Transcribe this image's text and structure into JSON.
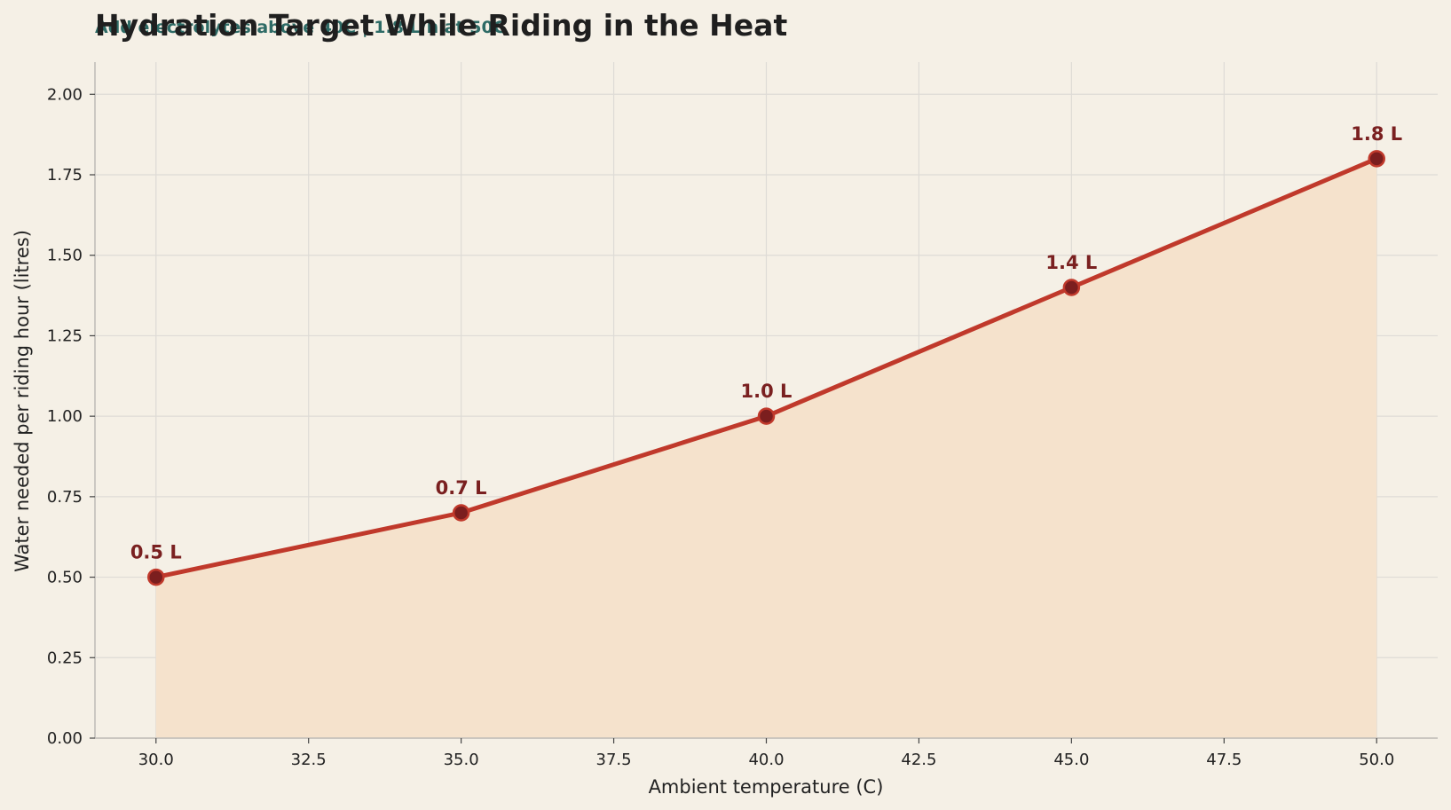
{
  "chart_data": {
    "type": "line",
    "title": "Hydration Target While Riding in the Heat",
    "subtitle": "Add electrolytes above 40C | 1.8 L/h at 50C",
    "xlabel": "Ambient temperature (C)",
    "ylabel": "Water needed per riding hour (litres)",
    "xlim": [
      29,
      51
    ],
    "ylim": [
      0,
      2.1
    ],
    "xticks": [
      30.0,
      32.5,
      35.0,
      37.5,
      40.0,
      42.5,
      45.0,
      47.5,
      50.0
    ],
    "xtick_labels": [
      "30.0",
      "32.5",
      "35.0",
      "37.5",
      "40.0",
      "42.5",
      "45.0",
      "47.5",
      "50.0"
    ],
    "yticks": [
      0,
      0.25,
      0.5,
      0.75,
      1.0,
      1.25,
      1.5,
      1.75,
      2.0
    ],
    "ytick_labels": [
      "0.00",
      "0.25",
      "0.50",
      "0.75",
      "1.00",
      "1.25",
      "1.50",
      "1.75",
      "2.00"
    ],
    "grid": true,
    "fill_under": true,
    "series": [
      {
        "x": [
          30,
          35,
          40,
          45,
          50
        ],
        "y": [
          0.5,
          0.7,
          1.0,
          1.4,
          1.8
        ],
        "labels": [
          "0.5 L",
          "0.7 L",
          "1.0 L",
          "1.4 L",
          "1.8 L"
        ]
      }
    ],
    "colors": {
      "background": "#f5f0e6",
      "line": "#c0392b",
      "marker_fill": "#7b1e1e",
      "fill": "#f5e2cc",
      "grid": "#dedbd6",
      "axis": "#bdbab5",
      "label": "#7a2020",
      "subtitle": "#2e6b66"
    }
  }
}
